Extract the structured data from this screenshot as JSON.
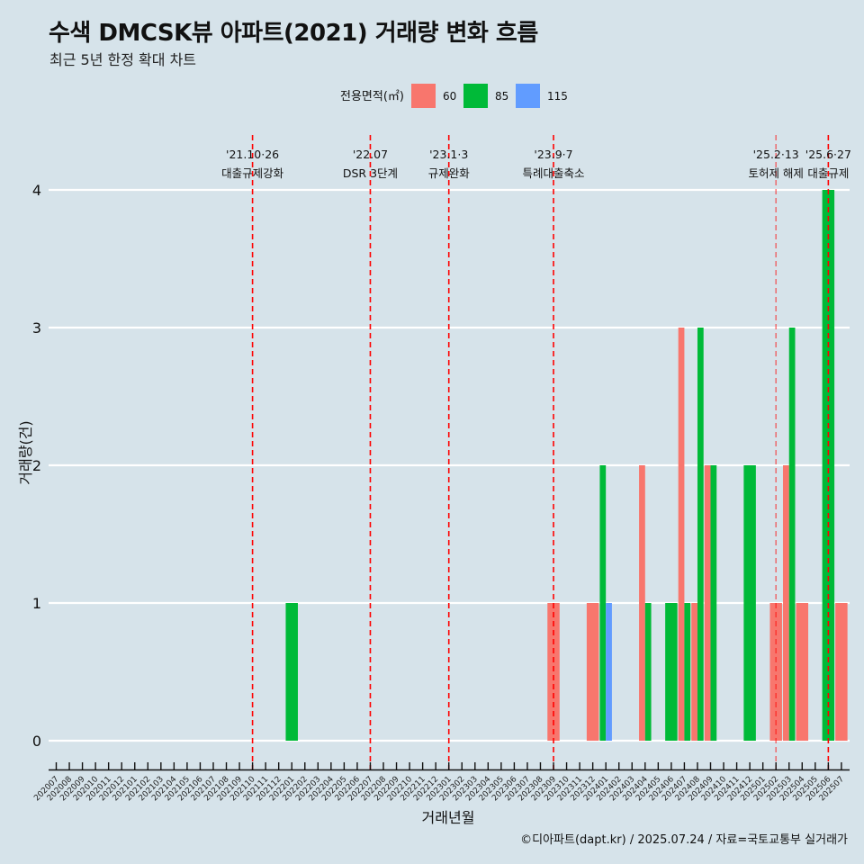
{
  "header": {
    "title": "수색 DMCSK뷰 아파트(2021) 거래량 변화 흐름",
    "subtitle": "최근 5년 한정 확대 차트"
  },
  "caption": "©디아파트(dapt.kr) / 2025.07.24 / 자료=국토교통부 실거래가",
  "chart_data": {
    "type": "bar",
    "title": "수색 DMCSK뷰 아파트(2021) 거래량 변화 흐름",
    "subtitle": "최근 5년 한정 확대 차트",
    "xlabel": "거래년월",
    "ylabel": "거래량(건)",
    "ylim": [
      0,
      4
    ],
    "yticks": [
      0,
      1,
      2,
      3,
      4
    ],
    "grid": true,
    "legend": {
      "title": "전용면적(㎡)",
      "position": "top",
      "entries": [
        {
          "label": "60",
          "color": "#F8766D"
        },
        {
          "label": "85",
          "color": "#00BA38"
        },
        {
          "label": "115",
          "color": "#619CFF"
        }
      ]
    },
    "categories": [
      "202007",
      "202008",
      "202009",
      "202010",
      "202011",
      "202012",
      "202101",
      "202102",
      "202103",
      "202104",
      "202105",
      "202106",
      "202107",
      "202108",
      "202109",
      "202110",
      "202111",
      "202112",
      "202201",
      "202202",
      "202203",
      "202204",
      "202205",
      "202206",
      "202207",
      "202208",
      "202209",
      "202210",
      "202211",
      "202212",
      "202301",
      "202302",
      "202303",
      "202304",
      "202305",
      "202306",
      "202307",
      "202308",
      "202309",
      "202310",
      "202311",
      "202312",
      "202401",
      "202402",
      "202403",
      "202404",
      "202405",
      "202406",
      "202407",
      "202408",
      "202409",
      "202410",
      "202411",
      "202412",
      "202501",
      "202502",
      "202503",
      "202504",
      "202505",
      "202506",
      "202507"
    ],
    "bars": [
      {
        "month": "202201",
        "values": {
          "85": 1
        }
      },
      {
        "month": "202309",
        "values": {
          "60": 1
        }
      },
      {
        "month": "202312",
        "values": {
          "60": 1
        }
      },
      {
        "month": "202401",
        "values": {
          "85": 2,
          "115": 1
        }
      },
      {
        "month": "202404",
        "values": {
          "60": 2,
          "85": 1
        }
      },
      {
        "month": "202406",
        "values": {
          "85": 1
        }
      },
      {
        "month": "202407",
        "values": {
          "60": 3,
          "85": 1
        }
      },
      {
        "month": "202408",
        "values": {
          "60": 1,
          "85": 3
        }
      },
      {
        "month": "202409",
        "values": {
          "60": 2,
          "85": 2
        }
      },
      {
        "month": "202412",
        "values": {
          "85": 2
        }
      },
      {
        "month": "202502",
        "values": {
          "60": 1
        }
      },
      {
        "month": "202503",
        "values": {
          "60": 2,
          "85": 3
        }
      },
      {
        "month": "202504",
        "values": {
          "60": 1
        }
      },
      {
        "month": "202506",
        "values": {
          "85": 4
        }
      },
      {
        "month": "202507",
        "values": {
          "60": 1
        }
      }
    ],
    "series": [
      {
        "name": "60",
        "values": [
          0,
          0,
          0,
          0,
          0,
          0,
          0,
          0,
          0,
          0,
          0,
          0,
          0,
          0,
          0,
          0,
          0,
          0,
          0,
          0,
          0,
          0,
          0,
          0,
          0,
          0,
          0,
          0,
          0,
          0,
          0,
          0,
          0,
          0,
          0,
          0,
          0,
          0,
          1,
          0,
          0,
          1,
          0,
          0,
          0,
          2,
          0,
          0,
          3,
          1,
          2,
          0,
          0,
          0,
          0,
          1,
          2,
          1,
          0,
          0,
          1
        ]
      },
      {
        "name": "85",
        "values": [
          0,
          0,
          0,
          0,
          0,
          0,
          0,
          0,
          0,
          0,
          0,
          0,
          0,
          0,
          0,
          0,
          0,
          0,
          1,
          0,
          0,
          0,
          0,
          0,
          0,
          0,
          0,
          0,
          0,
          0,
          0,
          0,
          0,
          0,
          0,
          0,
          0,
          0,
          0,
          0,
          0,
          0,
          2,
          0,
          0,
          1,
          0,
          1,
          1,
          3,
          2,
          0,
          0,
          2,
          0,
          0,
          3,
          0,
          0,
          4,
          0
        ]
      },
      {
        "name": "115",
        "values": [
          0,
          0,
          0,
          0,
          0,
          0,
          0,
          0,
          0,
          0,
          0,
          0,
          0,
          0,
          0,
          0,
          0,
          0,
          0,
          0,
          0,
          0,
          0,
          0,
          0,
          0,
          0,
          0,
          0,
          0,
          0,
          0,
          0,
          0,
          0,
          0,
          0,
          0,
          0,
          0,
          0,
          0,
          1,
          0,
          0,
          0,
          0,
          0,
          0,
          0,
          0,
          0,
          0,
          0,
          0,
          0,
          0,
          0,
          0,
          0,
          0
        ]
      }
    ],
    "annotations": [
      {
        "month": "202110",
        "date": "'21.10·26",
        "text": "대출규제강화",
        "color": "#FF0000",
        "opacity": 1
      },
      {
        "month": "202207",
        "date": "'22.07",
        "text": "DSR 3단계",
        "color": "#FF0000",
        "opacity": 1
      },
      {
        "month": "202301",
        "date": "'23.1·3",
        "text": "규제완화",
        "color": "#FF0000",
        "opacity": 1
      },
      {
        "month": "202309",
        "date": "'23.9·7",
        "text": "특례대출축소",
        "color": "#FF0000",
        "opacity": 1
      },
      {
        "month": "202502",
        "date": "'25.2·13",
        "text": "토허제 해제",
        "color": "#FF0000",
        "opacity": 0.5
      },
      {
        "month": "202506",
        "date": "'25.6·27",
        "text": "대출규제",
        "color": "#FF0000",
        "opacity": 1
      }
    ]
  },
  "style": {
    "background": "#D6E3EA",
    "gridline": "#FFFFFF"
  }
}
